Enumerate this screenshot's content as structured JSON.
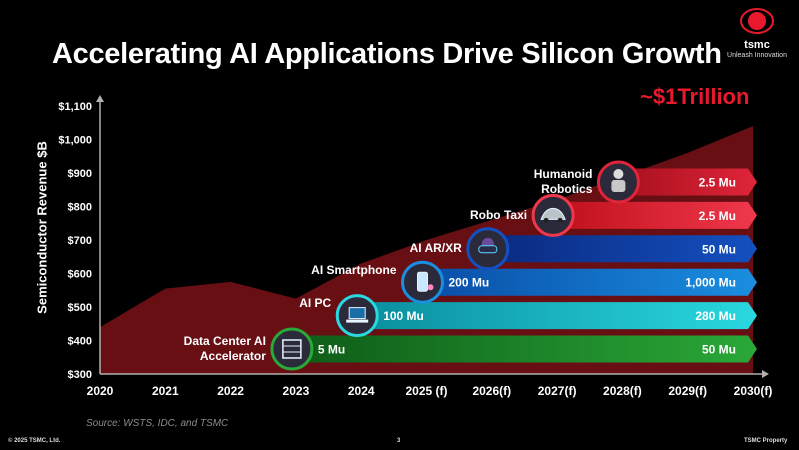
{
  "slide": {
    "title": "Accelerating AI Applications Drive Silicon Growth",
    "logo": "tsmc",
    "tagline": "Unleash Innovation",
    "callout": "~$1Trillion",
    "source": "Source: WSTS, IDC, and TSMC",
    "copyright": "© 2025 TSMC, Ltd.",
    "page_number": "3",
    "property": "TSMC Property"
  },
  "colors": {
    "area": "#7a1218",
    "callout": "#e8192c",
    "axis": "#b0b0b0"
  },
  "chart_data": {
    "type": "area",
    "ylabel": "Semiconductor Revenue $B",
    "ylim": [
      300,
      1100
    ],
    "y_ticks": [
      "$300",
      "$400",
      "$500",
      "$600",
      "$700",
      "$800",
      "$900",
      "$1,000",
      "$1,100"
    ],
    "y_tick_values": [
      300,
      400,
      500,
      600,
      700,
      800,
      900,
      1000,
      1100
    ],
    "categories": [
      "2020",
      "2021",
      "2022",
      "2023",
      "2024",
      "2025 (f)",
      "2026(f)",
      "2027(f)",
      "2028(f)",
      "2029(f)",
      "2030(f)"
    ],
    "series": [
      {
        "name": "Semiconductor Revenue",
        "values": [
          440,
          555,
          575,
          525,
          630,
          700,
          760,
          820,
          890,
          960,
          1040
        ]
      }
    ],
    "applications": [
      {
        "name": "Data Center AI Accelerator",
        "start": "2023",
        "start_label": "5 Mu",
        "end_label": "50 Mu",
        "color_start": "#0e5c18",
        "color_end": "#2aa838",
        "icon": "server-icon"
      },
      {
        "name": "AI PC",
        "start": "2024",
        "start_label": "100 Mu",
        "end_label": "280 Mu",
        "color_start": "#0a8e9e",
        "color_end": "#2ad8e0",
        "icon": "laptop-icon"
      },
      {
        "name": "AI Smartphone",
        "start": "2025 (f)",
        "start_label": "200 Mu",
        "end_label": "1,000 Mu",
        "color_start": "#0a4ea8",
        "color_end": "#1a8ee0",
        "icon": "smartphone-icon"
      },
      {
        "name": "AI AR/XR",
        "start": "2026(f)",
        "start_label": "",
        "end_label": "50 Mu",
        "color_start": "#0a2a80",
        "color_end": "#1450c0",
        "icon": "vr-headset-icon"
      },
      {
        "name": "Robo Taxi",
        "start": "2027(f)",
        "start_label": "",
        "end_label": "2.5 Mu",
        "color_start": "#c0101c",
        "color_end": "#f0384c",
        "icon": "car-icon"
      },
      {
        "name": "Humanoid Robotics",
        "start": "2028(f)",
        "start_label": "",
        "end_label": "2.5 Mu",
        "color_start": "#a8101e",
        "color_end": "#e0253a",
        "icon": "robot-icon"
      }
    ]
  }
}
